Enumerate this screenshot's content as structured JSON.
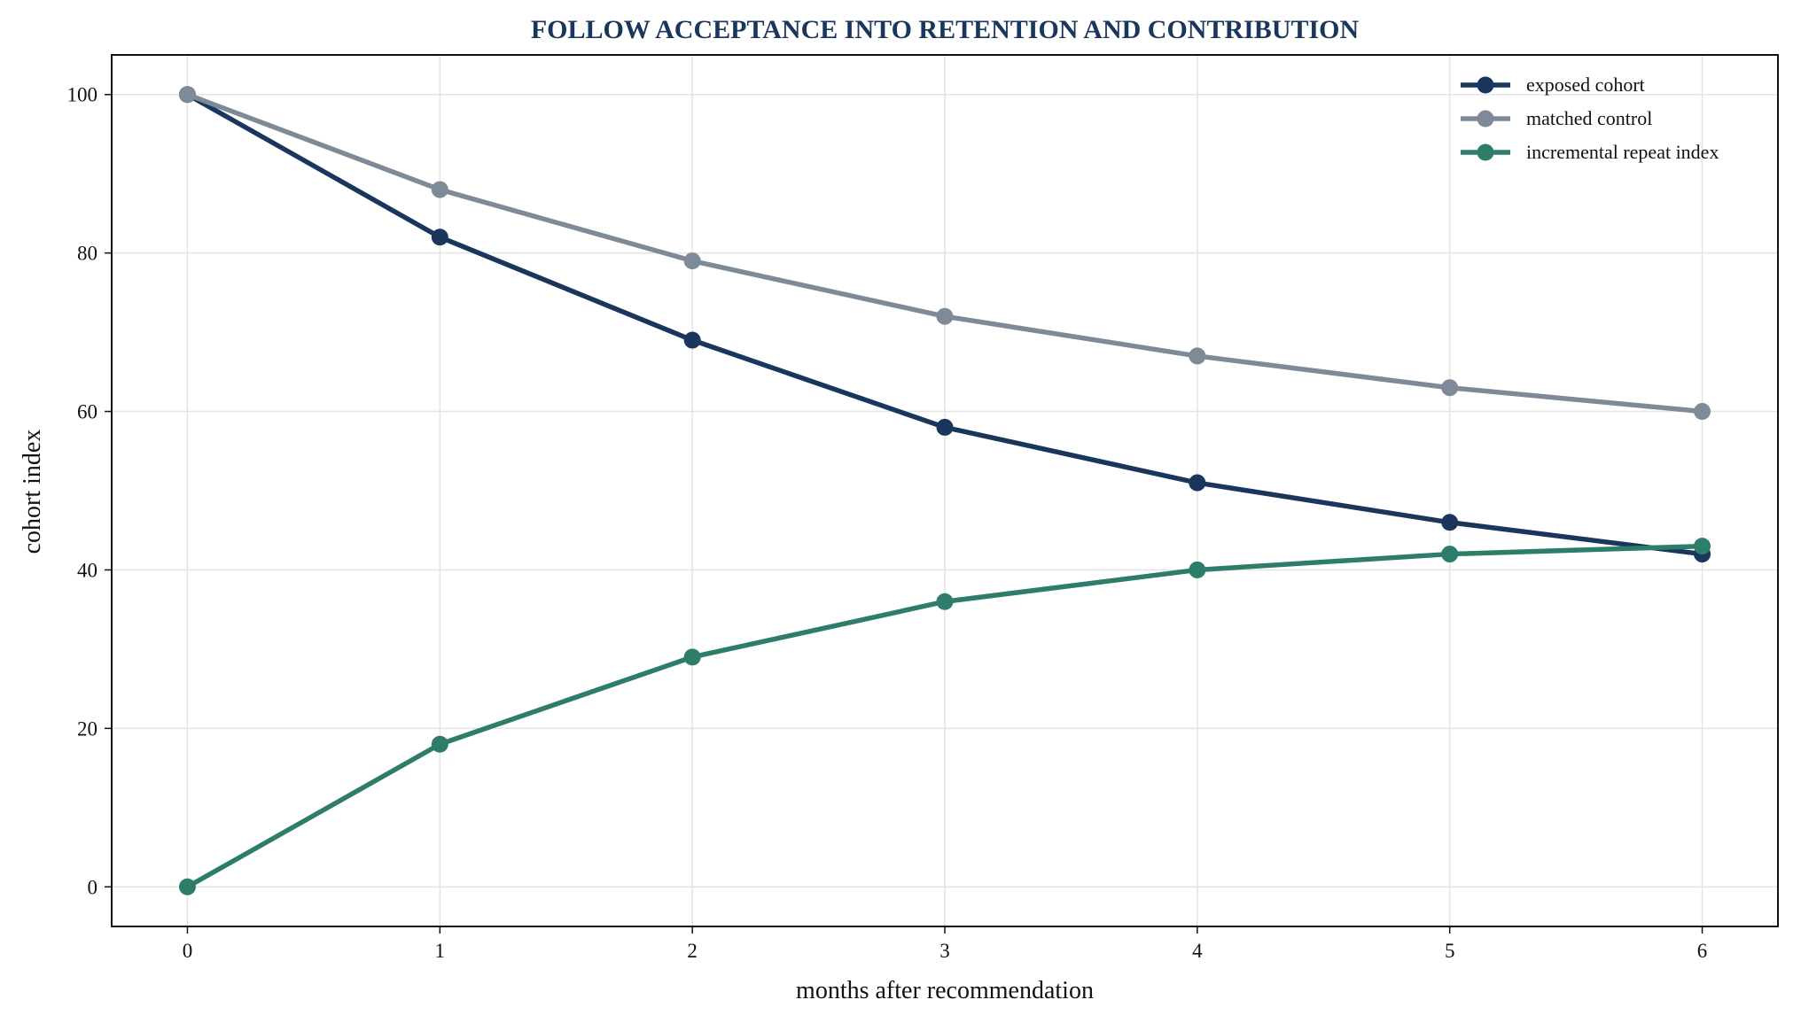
{
  "chart_data": {
    "type": "line",
    "title": "FOLLOW ACCEPTANCE INTO RETENTION AND CONTRIBUTION",
    "xlabel": "months after recommendation",
    "ylabel": "cohort index",
    "x": [
      0,
      1,
      2,
      3,
      4,
      5,
      6
    ],
    "xlim": [
      -0.3,
      6.3
    ],
    "ylim": [
      -5,
      105
    ],
    "xticks": [
      "0",
      "1",
      "2",
      "3",
      "4",
      "5",
      "6"
    ],
    "yticks": [
      "0",
      "20",
      "40",
      "60",
      "80",
      "100"
    ],
    "grid": true,
    "legend_position": "top-right",
    "series": [
      {
        "name": "exposed cohort",
        "color": "#1b365d",
        "values": [
          100,
          82,
          69,
          58,
          51,
          46,
          42
        ]
      },
      {
        "name": "matched control",
        "color": "#7f8a99",
        "values": [
          100,
          88,
          79,
          72,
          67,
          63,
          60
        ]
      },
      {
        "name": "incremental repeat index",
        "color": "#2e7d6b",
        "values": [
          0,
          18,
          29,
          36,
          40,
          42,
          43
        ]
      }
    ]
  }
}
